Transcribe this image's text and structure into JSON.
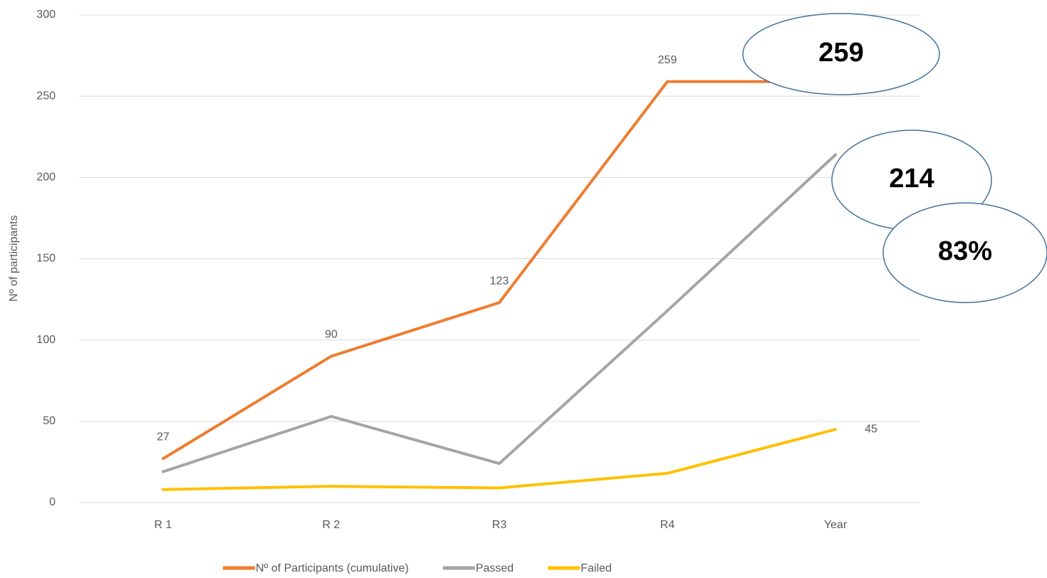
{
  "chart_data": {
    "type": "line",
    "y_label": "Nº of participants",
    "categories": [
      "R 1",
      "R 2",
      "R3",
      "R4",
      "Year"
    ],
    "series": [
      {
        "name": "Nº of Participants (cumulative)",
        "color": "#ed7d31",
        "values": [
          27,
          90,
          123,
          259,
          259
        ],
        "value_labels": [
          "27",
          "90",
          "123",
          "259",
          null
        ]
      },
      {
        "name": "Passed",
        "color": "#a5a5a5",
        "values": [
          19,
          53,
          24,
          118,
          214
        ]
      },
      {
        "name": "Failed",
        "color": "#ffc000",
        "values": [
          8,
          10,
          9,
          18,
          45
        ],
        "value_labels": [
          null,
          null,
          null,
          null,
          "45"
        ]
      }
    ],
    "ylim": [
      0,
      300
    ],
    "yticks": [
      0,
      50,
      100,
      150,
      200,
      250,
      300
    ],
    "grid": true,
    "annotations": [
      "259",
      "214",
      "83%"
    ]
  }
}
